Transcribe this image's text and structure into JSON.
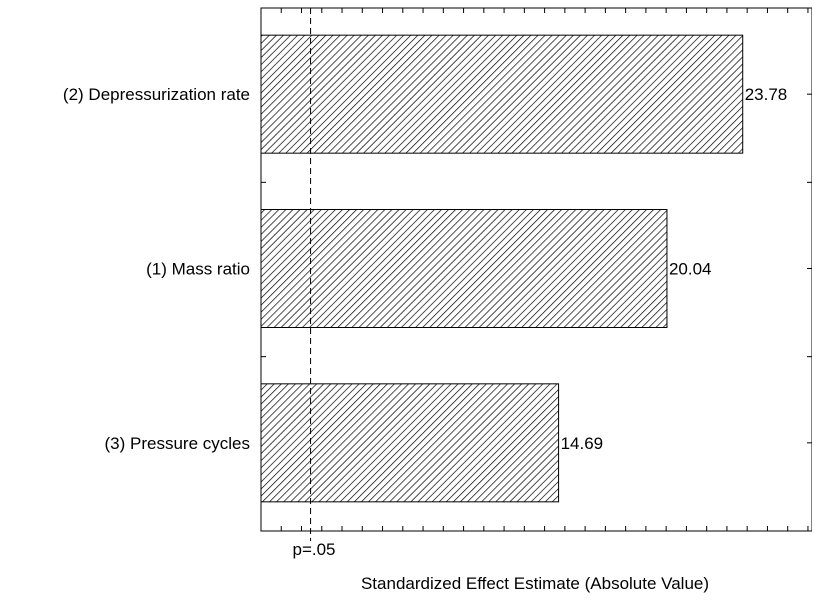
{
  "chart_data": {
    "type": "bar",
    "orientation": "horizontal",
    "title": "",
    "xlabel": "Standardized Effect Estimate (Absolute Value)",
    "ylabel": "",
    "categories": [
      "(2) Depressurization rate",
      "(1) Mass ratio",
      "(3) Pressure cycles"
    ],
    "values": [
      23.78,
      20.04,
      14.69
    ],
    "value_labels": [
      "23.78",
      "20.04",
      "14.69"
    ],
    "reference_line": {
      "value": 2.447,
      "label": "p=.05",
      "style": "dashed"
    },
    "xlim": [
      0,
      27.2
    ],
    "bar_fill": "hatched",
    "grid": false,
    "legend": "none"
  },
  "colors": {
    "bar_stroke": "#000000",
    "hatch": "#000000",
    "background": "#ffffff"
  }
}
